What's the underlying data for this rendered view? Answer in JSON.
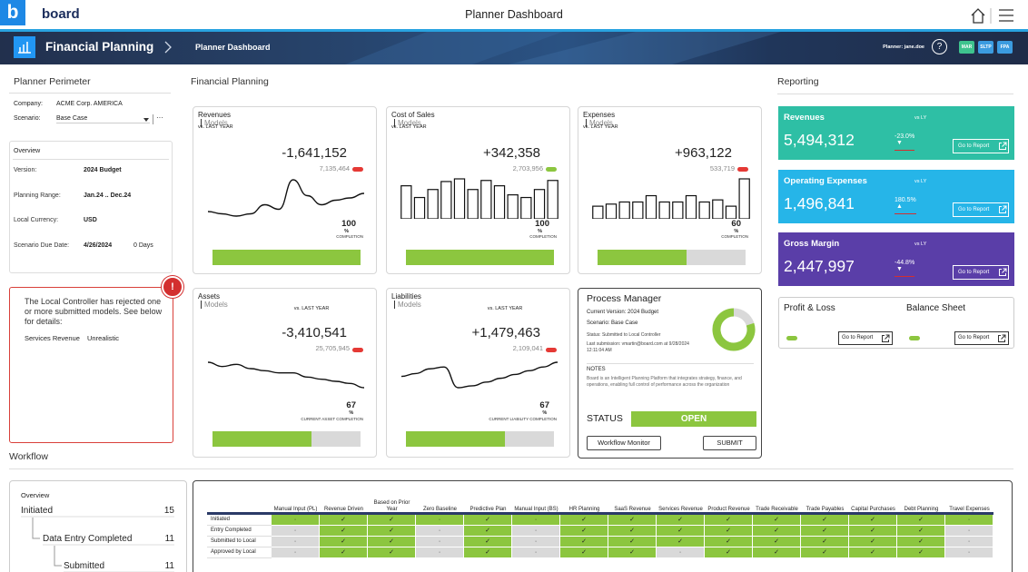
{
  "header": {
    "logo_mark": "b",
    "logo": "board",
    "title": "Planner Dashboard"
  },
  "banner": {
    "app": "Financial Planning",
    "page": "Planner Dashboard",
    "user": "Planner: jane.doe",
    "help": "?",
    "badges": [
      {
        "label": "MAR",
        "color": "#3ec38e"
      },
      {
        "label": "SLTP",
        "color": "#3b9be0"
      },
      {
        "label": "FPA",
        "color": "#3b9be0"
      }
    ]
  },
  "perimeter": {
    "title": "Planner Perimeter",
    "company_label": "Company:",
    "company": "ACME Corp. AMERICA",
    "scenario_label": "Scenario:",
    "scenario": "Base Case",
    "more": "···"
  },
  "overview": {
    "title": "Overview",
    "rows": [
      [
        "Version:",
        "2024 Budget"
      ],
      [
        "Planning Range:",
        "Jan.24 .. Dec.24"
      ],
      [
        "Local Currency:",
        "USD"
      ],
      [
        "Scenario Due Date:",
        "4/26/2024",
        "0 Days"
      ]
    ]
  },
  "alert": {
    "icon": "!",
    "message": "The Local Controller has rejected one or more submitted models. See below for details:",
    "detail_model": "Services Revenue",
    "detail_reason": "Unrealistic"
  },
  "financial": {
    "title": "Financial Planning",
    "cards": [
      {
        "name": "Revenues",
        "link": "Models",
        "subtitle": "vs. LAST YEAR",
        "delta": "-1,641,152",
        "total": "7,135,464",
        "total_color": "#e53935",
        "chart": "line",
        "trend": [
          30,
          29,
          28,
          29,
          33,
          31,
          44,
          37,
          33,
          35,
          36,
          38
        ],
        "completion": 100,
        "completion_unit": "%",
        "completion_label": "COMPLETION"
      },
      {
        "name": "Cost of Sales",
        "link": "Models",
        "subtitle": "vs. LAST YEAR",
        "delta": "+342,358",
        "total": "2,703,956",
        "total_color": "#8cc63f",
        "chart": "bar",
        "trend": [
          62,
          40,
          55,
          70,
          75,
          55,
          72,
          62,
          45,
          40,
          55,
          72
        ],
        "completion": 100,
        "completion_unit": "%",
        "completion_label": "COMPLETION"
      },
      {
        "name": "Expenses",
        "link": "Models",
        "subtitle": "vs. LAST YEAR",
        "delta": "+963,122",
        "total": "533,719",
        "total_color": "#e53935",
        "chart": "bar",
        "trend": [
          30,
          35,
          40,
          40,
          55,
          40,
          40,
          55,
          40,
          45,
          30,
          95
        ],
        "completion": 60,
        "completion_unit": "%",
        "completion_label": "COMPLETION"
      },
      {
        "name": "Assets",
        "link": "Models",
        "subtitle": "vs. LAST YEAR",
        "delta": "-3,410,541",
        "total": "25,705,945",
        "total_color": "#e53935",
        "chart": "line",
        "trend": [
          40,
          38,
          39,
          37,
          36,
          35,
          35,
          33,
          32,
          31,
          30,
          28
        ],
        "completion": 67,
        "completion_unit": "%",
        "completion_label": "CURRENT ASSET COMPLETION"
      },
      {
        "name": "Liabilities",
        "link": "Models",
        "subtitle": "vs. LAST YEAR",
        "delta": "+1,479,463",
        "total": "2,109,041",
        "total_color": "#e53935",
        "chart": "line",
        "trend": [
          30,
          33,
          38,
          40,
          18,
          20,
          24,
          28,
          32,
          36,
          40,
          45
        ],
        "completion": 67,
        "completion_unit": "%",
        "completion_label": "CURRENT LIABILITY COMPLETION"
      }
    ]
  },
  "process": {
    "title": "Process Manager",
    "version": "Current Version: 2024 Budget",
    "scenario": "Scenario: Base Case",
    "status_line": "Status: Submitted to Local Controller",
    "submission": "Last submission: vmartin@board.com at 9/28/2024 12:11:04 AM",
    "notes_title": "NOTES",
    "notes": "Board is an Intelligent Planning Platform that integrates strategy, finance, and operations, enabling full control of performance across the organization",
    "donut": [
      20,
      80
    ],
    "donut_colors": [
      "#d9d9d9",
      "#8cc63f"
    ],
    "status_label": "STATUS",
    "status": "OPEN",
    "monitor": "Workflow Monitor",
    "submit": "SUBMIT"
  },
  "reporting": {
    "title": "Reporting",
    "cards": [
      {
        "name": "Revenues",
        "compare": "vs LY",
        "value": "5,494,312",
        "change": "-23.0%",
        "arrow": "▼",
        "link": "Go to Report",
        "color": "#2ebfa5"
      },
      {
        "name": "Operating Expenses",
        "compare": "vs LY",
        "value": "1,496,841",
        "change": "180.5%",
        "arrow": "▲",
        "link": "Go to Report",
        "color": "#26b5e8"
      },
      {
        "name": "Gross Margin",
        "compare": "vs LY",
        "value": "2,447,997",
        "change": "-44.8%",
        "arrow": "▼",
        "link": "Go to Report",
        "color": "#5a3ea8"
      }
    ],
    "links": [
      {
        "name": "Profit & Loss",
        "link": "Go to Report"
      },
      {
        "name": "Balance Sheet",
        "link": "Go to Report"
      }
    ]
  },
  "workflow": {
    "title": "Workflow",
    "overview": {
      "title": "Overview",
      "items": [
        {
          "label": "Initiated",
          "count": 15
        },
        {
          "label": "Data Entry Completed",
          "count": 11
        },
        {
          "label": "Submitted",
          "count": 11
        }
      ]
    },
    "table": {
      "columns": [
        "Manual Input (PL)",
        "Revenue Driven",
        "Based on Prior Year",
        "Zero Baseline",
        "Predictive Plan",
        "Manual Input (BS)",
        "HR Planning",
        "SaaS Revenue",
        "Services Revenue",
        "Product Revenue",
        "Trade Receivable",
        "Trade Payables",
        "Capital Purchases",
        "Debt Planning",
        "Travel Expenses"
      ],
      "rows": [
        {
          "label": "Initiated",
          "cells": [
            "·",
            "✓",
            "✓",
            "·",
            "✓",
            "·",
            "✓",
            "✓",
            "✓",
            "✓",
            "✓",
            "✓",
            "✓",
            "✓",
            "·"
          ],
          "colors": [
            "#8cc63f",
            "#8cc63f",
            "#8cc63f",
            "#8cc63f",
            "#8cc63f",
            "#8cc63f",
            "#8cc63f",
            "#8cc63f",
            "#8cc63f",
            "#8cc63f",
            "#8cc63f",
            "#8cc63f",
            "#8cc63f",
            "#8cc63f",
            "#8cc63f"
          ]
        },
        {
          "label": "Entry Completed",
          "cells": [
            "·",
            "✓",
            "✓",
            "·",
            "✓",
            "·",
            "✓",
            "✓",
            "✓",
            "✓",
            "✓",
            "✓",
            "✓",
            "✓",
            "·"
          ],
          "colors": [
            "#d9d9d9",
            "#8cc63f",
            "#8cc63f",
            "#d9d9d9",
            "#8cc63f",
            "#d9d9d9",
            "#8cc63f",
            "#8cc63f",
            "#8cc63f",
            "#8cc63f",
            "#8cc63f",
            "#8cc63f",
            "#8cc63f",
            "#8cc63f",
            "#d9d9d9"
          ]
        },
        {
          "label": "Submitted to Local",
          "cells": [
            "·",
            "✓",
            "✓",
            "·",
            "✓",
            "·",
            "✓",
            "✓",
            "✓",
            "✓",
            "✓",
            "✓",
            "✓",
            "✓",
            "·"
          ],
          "colors": [
            "#d9d9d9",
            "#8cc63f",
            "#8cc63f",
            "#d9d9d9",
            "#8cc63f",
            "#d9d9d9",
            "#8cc63f",
            "#8cc63f",
            "#8cc63f",
            "#8cc63f",
            "#8cc63f",
            "#8cc63f",
            "#8cc63f",
            "#8cc63f",
            "#d9d9d9"
          ]
        },
        {
          "label": "Approved by Local",
          "cells": [
            "·",
            "✓",
            "✓",
            "·",
            "✓",
            "·",
            "✓",
            "✓",
            "·",
            "✓",
            "✓",
            "✓",
            "✓",
            "✓",
            "·"
          ],
          "colors": [
            "#d9d9d9",
            "#8cc63f",
            "#8cc63f",
            "#d9d9d9",
            "#8cc63f",
            "#d9d9d9",
            "#8cc63f",
            "#8cc63f",
            "#d9d9d9",
            "#8cc63f",
            "#8cc63f",
            "#8cc63f",
            "#8cc63f",
            "#8cc63f",
            "#d9d9d9"
          ]
        }
      ]
    }
  }
}
